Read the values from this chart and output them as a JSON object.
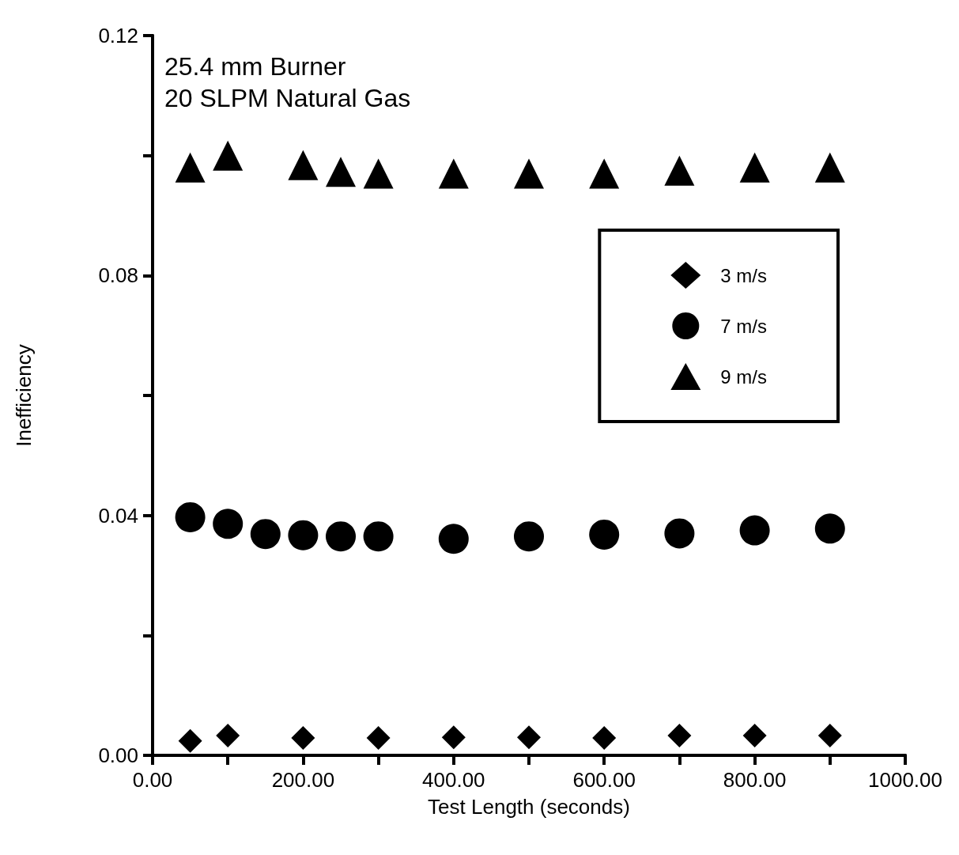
{
  "chart_data": {
    "type": "scatter",
    "xlabel": "Test Length (seconds)",
    "ylabel": "Inefficiency",
    "annotations": [
      "25.4 mm Burner",
      "20 SLPM Natural Gas"
    ],
    "xlim": [
      0,
      1000
    ],
    "ylim": [
      0,
      0.12
    ],
    "xticks": [
      {
        "value": 0,
        "label": "0.00"
      },
      {
        "value": 100,
        "label": null
      },
      {
        "value": 200,
        "label": "200.00"
      },
      {
        "value": 300,
        "label": null
      },
      {
        "value": 400,
        "label": "400.00"
      },
      {
        "value": 500,
        "label": null
      },
      {
        "value": 600,
        "label": "600.00"
      },
      {
        "value": 700,
        "label": null
      },
      {
        "value": 800,
        "label": "800.00"
      },
      {
        "value": 900,
        "label": null
      },
      {
        "value": 1000,
        "label": "1000.00"
      }
    ],
    "yticks": [
      {
        "value": 0,
        "label": "0.00"
      },
      {
        "value": 0.02,
        "label": null
      },
      {
        "value": 0.04,
        "label": "0.04"
      },
      {
        "value": 0.06,
        "label": null
      },
      {
        "value": 0.08,
        "label": "0.08"
      },
      {
        "value": 0.1,
        "label": null
      },
      {
        "value": 0.12,
        "label": "0.12"
      }
    ],
    "grid": false,
    "legend": "right",
    "series": [
      {
        "name": "3 m/s",
        "color": "#000000",
        "marker": "diamond",
        "x": [
          50,
          100,
          200,
          300,
          400,
          500,
          600,
          700,
          800,
          900
        ],
        "values": [
          0.0024,
          0.0033,
          0.0029,
          0.0029,
          0.003,
          0.003,
          0.0029,
          0.0033,
          0.0033,
          0.0033
        ]
      },
      {
        "name": "7 m/s",
        "color": "#000000",
        "marker": "circle",
        "x": [
          50,
          100,
          150,
          200,
          250,
          300,
          400,
          500,
          600,
          700,
          800,
          900
        ],
        "values": [
          0.0397,
          0.0386,
          0.0369,
          0.0367,
          0.0365,
          0.0365,
          0.0361,
          0.0365,
          0.0368,
          0.037,
          0.0375,
          0.0378
        ]
      },
      {
        "name": "9 m/s",
        "color": "#000000",
        "marker": "triangle",
        "x": [
          50,
          100,
          200,
          250,
          300,
          400,
          500,
          600,
          700,
          800,
          900
        ],
        "values": [
          0.098,
          0.1,
          0.0984,
          0.0973,
          0.097,
          0.097,
          0.097,
          0.097,
          0.0975,
          0.098,
          0.098
        ]
      }
    ]
  }
}
